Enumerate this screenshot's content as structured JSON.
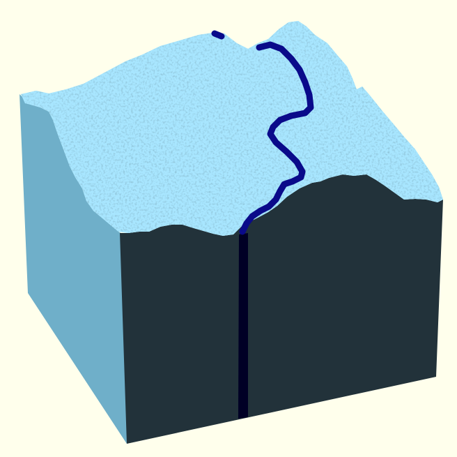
{
  "scene": {
    "background_color": "#ffffec",
    "colors": {
      "terrain_light": "#a8e6ff",
      "terrain_mid": "#7fc6e4",
      "terrain_shadow": "#2c4a58",
      "left_face": "#6fafc9",
      "front_face": "#22323a",
      "river": "#0a0a8a",
      "river_cut": "#000025"
    }
  }
}
